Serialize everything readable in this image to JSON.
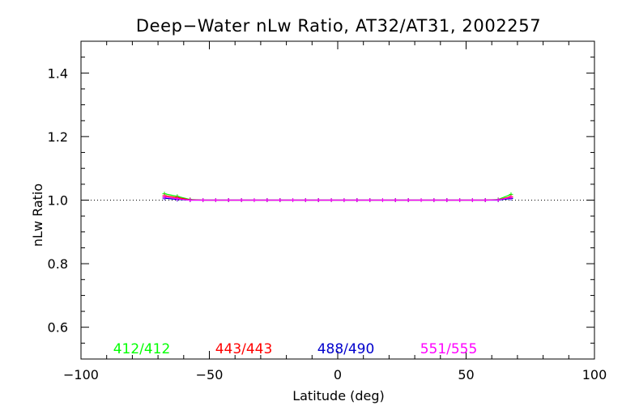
{
  "chart_data": {
    "type": "line",
    "title": "Deep−Water nLw Ratio, AT32/AT31, 2002257",
    "xlabel": "Latitude (deg)",
    "ylabel": "nLw Ratio",
    "xlim": [
      -100,
      100
    ],
    "ylim": [
      0.5,
      1.5
    ],
    "x_ticks": [
      -100,
      -50,
      0,
      50,
      100
    ],
    "x_tick_labels": [
      "−100",
      "−50",
      "0",
      "50",
      "100"
    ],
    "y_ticks": [
      0.6,
      0.8,
      1.0,
      1.2,
      1.4
    ],
    "y_tick_labels": [
      "0.6",
      "0.8",
      "1.0",
      "1.2",
      "1.4"
    ],
    "reference_line": {
      "y": 1.0,
      "style": "dotted"
    },
    "grid": false,
    "x": [
      -67.5,
      -62.5,
      -57.5,
      -52.5,
      -47.5,
      -42.5,
      -37.5,
      -32.5,
      -27.5,
      -22.5,
      -17.5,
      -12.5,
      -7.5,
      -2.5,
      2.5,
      7.5,
      12.5,
      17.5,
      22.5,
      27.5,
      32.5,
      37.5,
      42.5,
      47.5,
      52.5,
      57.5,
      62.5,
      67.5
    ],
    "series": [
      {
        "name": "412/412",
        "color": "#00ff00",
        "values": [
          1.02,
          1.012,
          1.002,
          1.0,
          1.0,
          1.0,
          1.0,
          1.0,
          1.0,
          1.0,
          1.0,
          1.0,
          1.0,
          1.0,
          1.0,
          1.0,
          1.0,
          1.0,
          1.0,
          1.0,
          1.0,
          1.0,
          1.0,
          1.0,
          1.0,
          1.0,
          1.002,
          1.018
        ]
      },
      {
        "name": "443/443",
        "color": "#ff0000",
        "values": [
          1.014,
          1.008,
          1.001,
          1.0,
          1.0,
          1.0,
          1.0,
          1.0,
          1.0,
          1.0,
          1.0,
          1.0,
          1.0,
          1.0,
          1.0,
          1.0,
          1.0,
          1.0,
          1.0,
          1.0,
          1.0,
          1.0,
          1.0,
          1.0,
          1.0,
          1.0,
          1.001,
          1.011
        ]
      },
      {
        "name": "488/490",
        "color": "#0000cc",
        "values": [
          1.006,
          1.002,
          1.0,
          1.0,
          1.0,
          1.0,
          1.0,
          1.0,
          1.0,
          1.0,
          1.0,
          1.0,
          1.0,
          1.0,
          1.0,
          1.0,
          1.0,
          1.0,
          1.0,
          1.0,
          1.0,
          1.0,
          1.0,
          1.0,
          1.0,
          1.0,
          1.0,
          1.005
        ]
      },
      {
        "name": "551/555",
        "color": "#ff00ff",
        "values": [
          1.01,
          1.004,
          1.0,
          1.0,
          1.0,
          1.0,
          1.0,
          1.0,
          1.0,
          1.0,
          1.0,
          1.0,
          1.0,
          1.0,
          1.0,
          1.0,
          1.0,
          1.0,
          1.0,
          1.0,
          1.0,
          1.0,
          1.0,
          1.0,
          1.0,
          1.0,
          1.001,
          1.008
        ]
      }
    ],
    "legend": {
      "placement": "bottom-inside",
      "entries": [
        "412/412",
        "443/443",
        "488/490",
        "551/555"
      ]
    }
  }
}
